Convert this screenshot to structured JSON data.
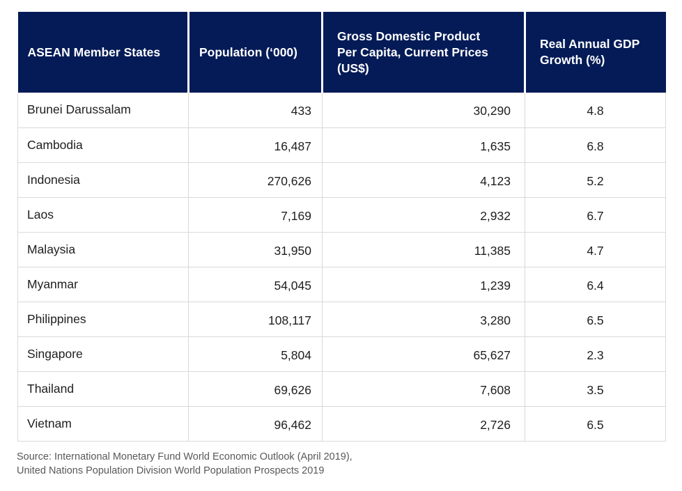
{
  "colors": {
    "header_bg": "#041b57",
    "header_text": "#ffffff",
    "body_text": "#1e1e1e",
    "grid_line": "#d9d9d9",
    "source_text": "#58595b"
  },
  "chart_data": {
    "type": "table",
    "columns": [
      "ASEAN Member States",
      "Population (‘000)",
      "Gross Domestic Product Per Capita, Current Prices (US$)",
      "Real Annual GDP Growth (%)"
    ],
    "header_display": {
      "col1": "ASEAN Member States",
      "col2": "Population (‘000)",
      "col3": "Gross Domestic Product\nPer Capita, Current Prices\n(US$)",
      "col4": "Real Annual GDP\nGrowth (%)"
    },
    "rows": [
      {
        "country": "Brunei Darussalam",
        "population": "433",
        "gdp_per_capita": "30,290",
        "growth": "4.8"
      },
      {
        "country": "Cambodia",
        "population": "16,487",
        "gdp_per_capita": "1,635",
        "growth": "6.8"
      },
      {
        "country": "Indonesia",
        "population": "270,626",
        "gdp_per_capita": "4,123",
        "growth": "5.2"
      },
      {
        "country": "Laos",
        "population": "7,169",
        "gdp_per_capita": "2,932",
        "growth": "6.7"
      },
      {
        "country": "Malaysia",
        "population": "31,950",
        "gdp_per_capita": "11,385",
        "growth": "4.7"
      },
      {
        "country": "Myanmar",
        "population": "54,045",
        "gdp_per_capita": "1,239",
        "growth": "6.4"
      },
      {
        "country": "Philippines",
        "population": "108,117",
        "gdp_per_capita": "3,280",
        "growth": "6.5"
      },
      {
        "country": "Singapore",
        "population": "5,804",
        "gdp_per_capita": "65,627",
        "growth": "2.3"
      },
      {
        "country": "Thailand",
        "population": "69,626",
        "gdp_per_capita": "7,608",
        "growth": "3.5"
      },
      {
        "country": "Vietnam",
        "population": "96,462",
        "gdp_per_capita": "2,726",
        "growth": "6.5"
      }
    ]
  },
  "source": {
    "line1": "Source: International Monetary Fund World Economic Outlook (April 2019),",
    "line2": "United Nations Population Division World Population Prospects 2019"
  }
}
